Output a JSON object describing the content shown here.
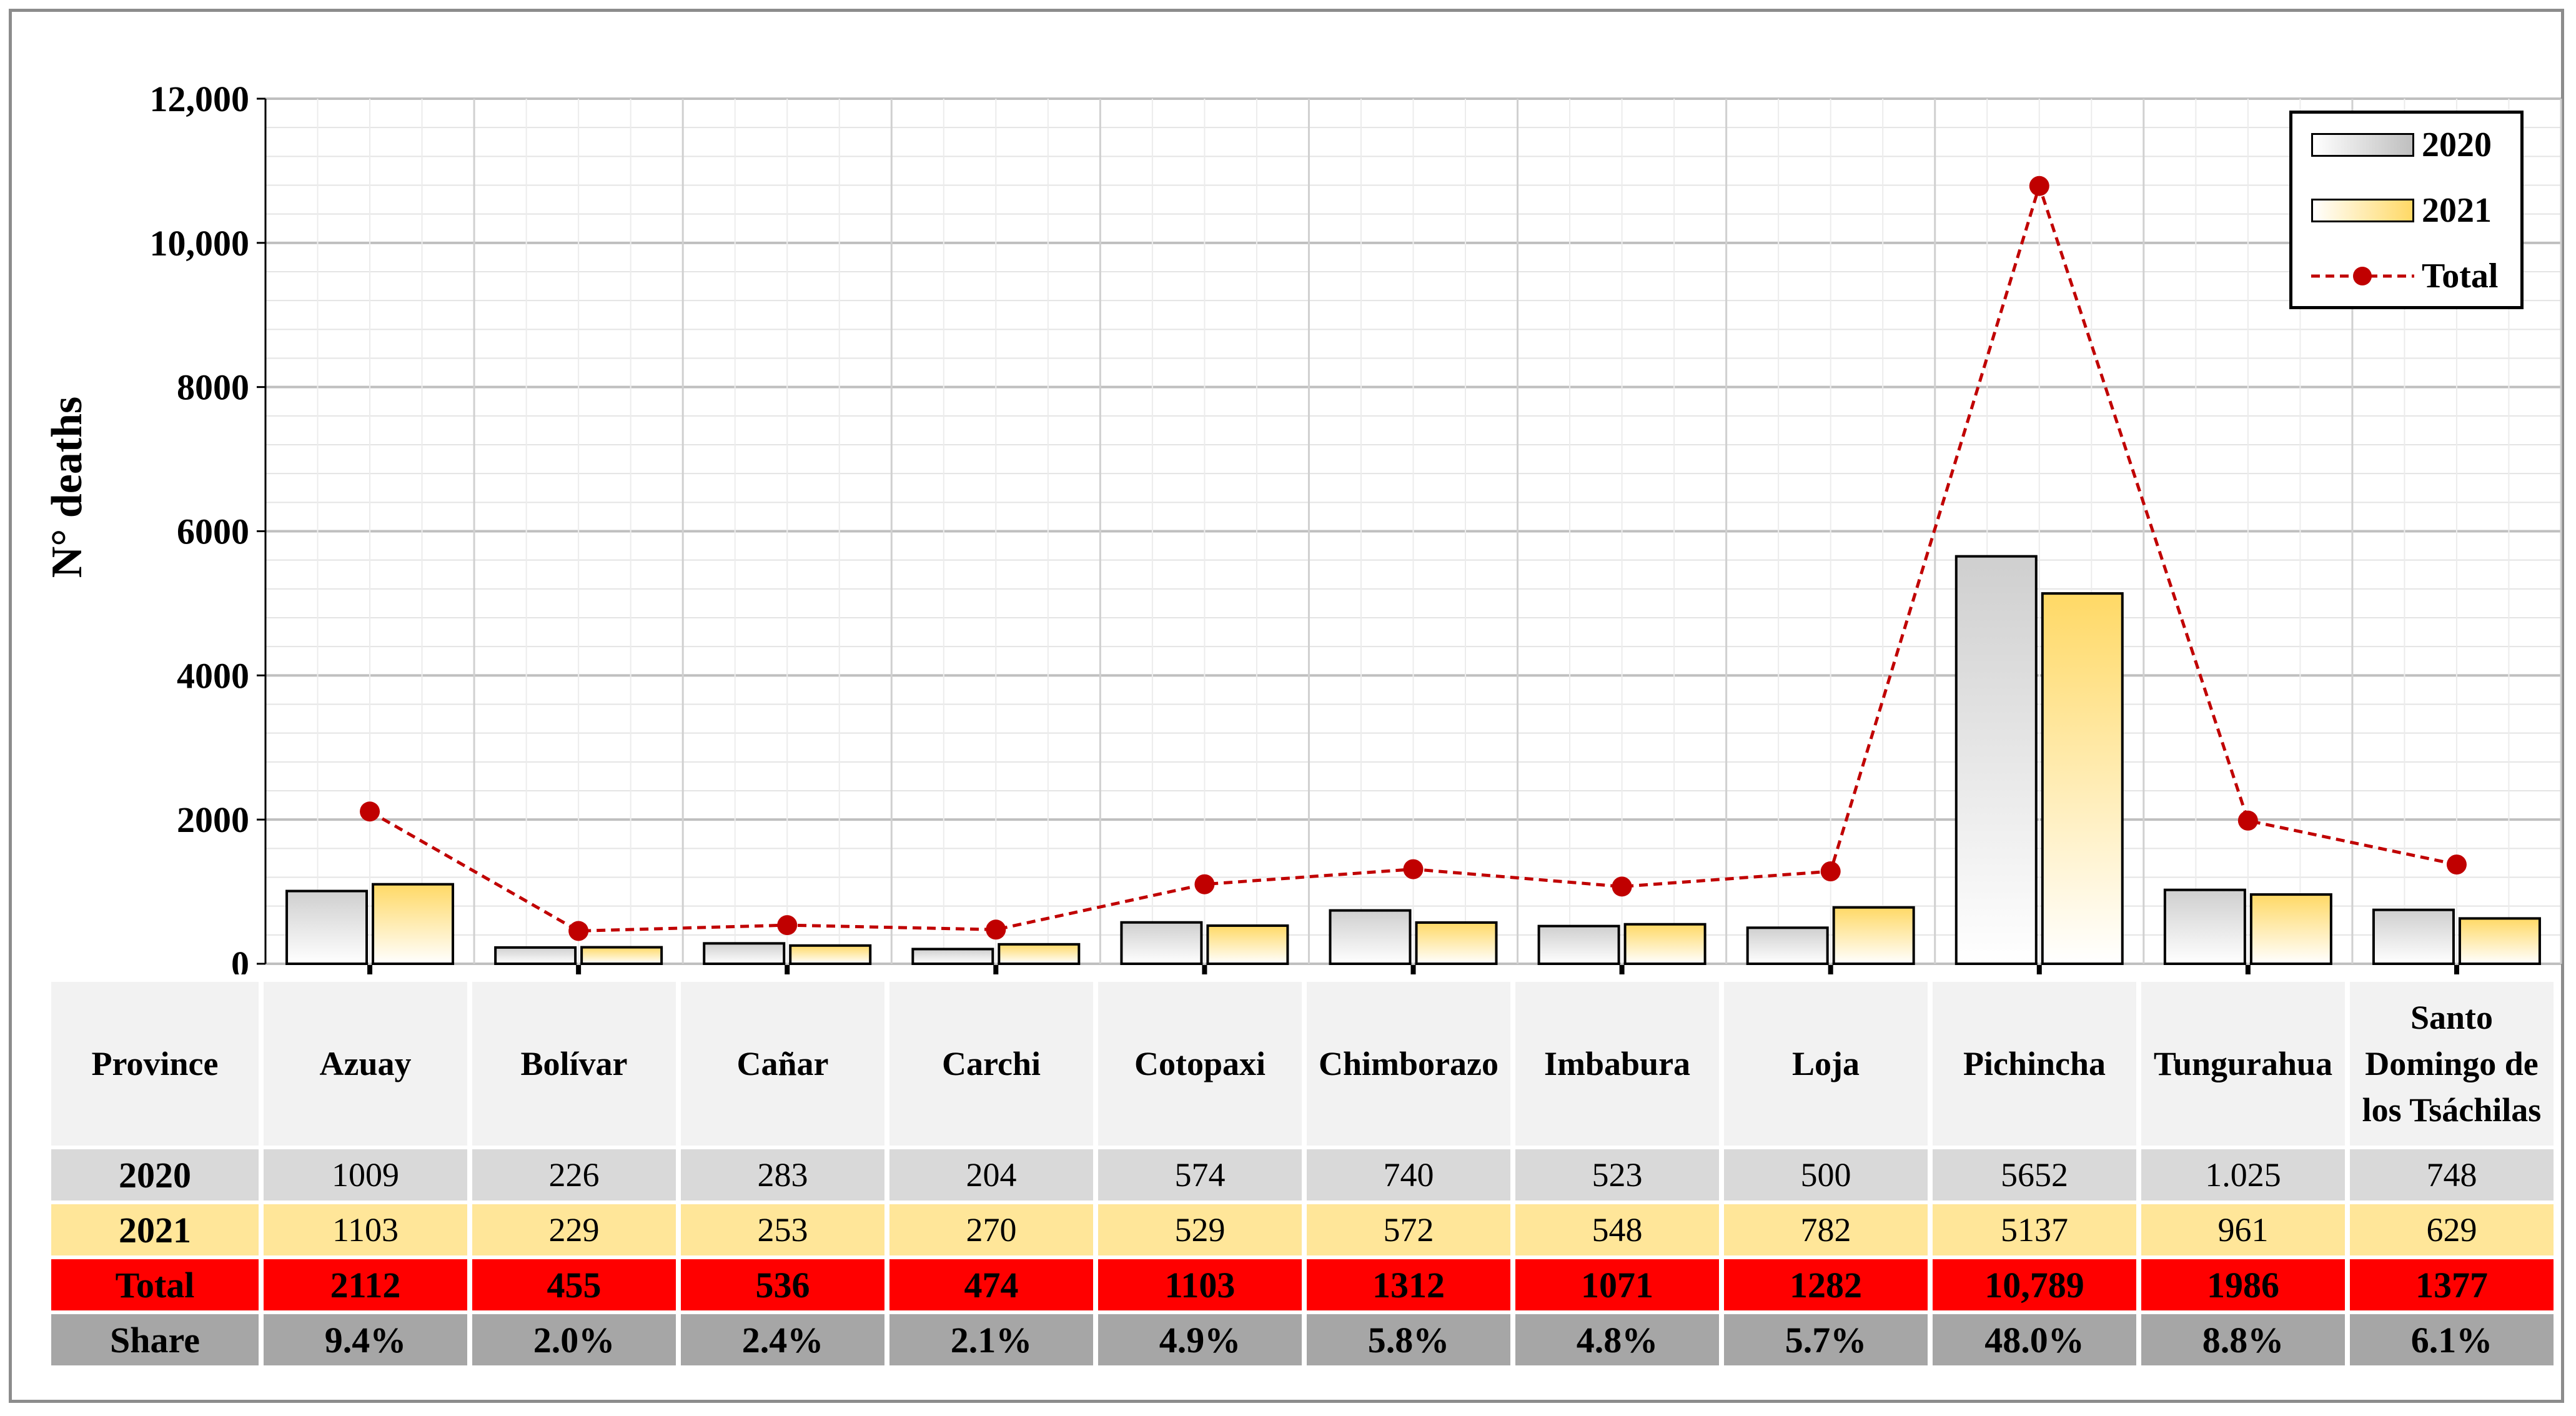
{
  "chart_data": {
    "type": "bar",
    "ylabel": "N° deaths",
    "ylim": [
      0,
      12000
    ],
    "yticks": [
      {
        "value": 0,
        "label": "0"
      },
      {
        "value": 2000,
        "label": "2000"
      },
      {
        "value": 4000,
        "label": "4000"
      },
      {
        "value": 6000,
        "label": "6000"
      },
      {
        "value": 8000,
        "label": "8000"
      },
      {
        "value": 10000,
        "label": "10,000"
      },
      {
        "value": 12000,
        "label": "12,000"
      }
    ],
    "grid": true,
    "legend_position": "top-right",
    "categories": [
      "Azuay",
      "Bolívar",
      "Cañar",
      "Carchi",
      "Cotopaxi",
      "Chimborazo",
      "Imbabura",
      "Loja",
      "Pichincha",
      "Tungurahua",
      "Santo Domingo de los Tsáchilas"
    ],
    "series": [
      {
        "name": "2020",
        "kind": "bar",
        "values": [
          1009,
          226,
          283,
          204,
          574,
          740,
          523,
          500,
          5652,
          1025,
          748
        ]
      },
      {
        "name": "2021",
        "kind": "bar",
        "values": [
          1103,
          229,
          253,
          270,
          529,
          572,
          548,
          782,
          5137,
          961,
          629
        ]
      },
      {
        "name": "Total",
        "kind": "line",
        "values": [
          2112,
          455,
          536,
          474,
          1103,
          1312,
          1071,
          1282,
          10789,
          1986,
          1377
        ]
      }
    ],
    "colors": {
      "2020": "#d9d9d9",
      "2021": "#ffe699",
      "Total": "#c00000"
    }
  },
  "table": {
    "header_label": "Province",
    "row_labels": [
      "2020",
      "2021",
      "Total",
      "Share"
    ],
    "rows": {
      "r2020": [
        "1009",
        "226",
        "283",
        "204",
        "574",
        "740",
        "523",
        "500",
        "5652",
        "1.025",
        "748"
      ],
      "r2021": [
        "1103",
        "229",
        "253",
        "270",
        "529",
        "572",
        "548",
        "782",
        "5137",
        "961",
        "629"
      ],
      "total": [
        "2112",
        "455",
        "536",
        "474",
        "1103",
        "1312",
        "1071",
        "1282",
        "10,789",
        "1986",
        "1377"
      ],
      "share": [
        "9.4%",
        "2.0%",
        "2.4%",
        "2.1%",
        "4.9%",
        "5.8%",
        "4.8%",
        "5.7%",
        "48.0%",
        "8.8%",
        "6.1%"
      ]
    }
  }
}
